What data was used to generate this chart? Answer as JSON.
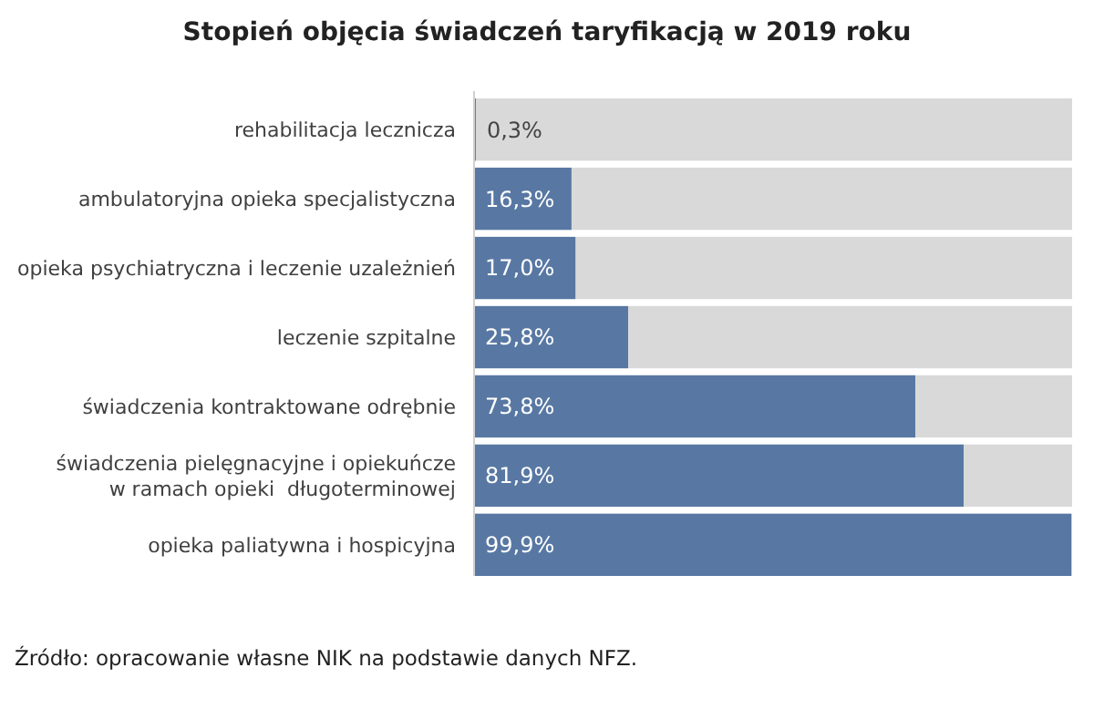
{
  "chart_data": {
    "type": "bar",
    "orientation": "horizontal",
    "stacked": true,
    "title": "Stopień objęcia świadczeń taryfikacją w 2019 roku",
    "categories": [
      "rehabilitacja lecznicza",
      "ambulatoryjna opieka specjalistyczna",
      "opieka psychiatryczna i leczenie uzależnień",
      "leczenie szpitalne",
      "świadczenia kontraktowane odrębnie",
      "świadczenia pielęgnacyjne i opiekuńcze\nw ramach opieki  długoterminowej",
      "opieka paliatywna i hospicyjna"
    ],
    "xlim": [
      0,
      100
    ],
    "series": [
      {
        "color": "#5878a3",
        "values": [
          0.3,
          16.3,
          17.0,
          25.8,
          73.8,
          81.9,
          99.9
        ],
        "value_labels": [
          "0,3%",
          "16,3%",
          "17,0%",
          "25,8%",
          "73,8%",
          "81,9%",
          "99,9%"
        ]
      },
      {
        "color": "#d9d9d9",
        "values": [
          99.7,
          83.7,
          83.0,
          74.2,
          26.2,
          18.1,
          null
        ]
      }
    ],
    "annotations": [
      "Źródło: opracowanie własne NIK na podstawie danych NFZ."
    ]
  }
}
